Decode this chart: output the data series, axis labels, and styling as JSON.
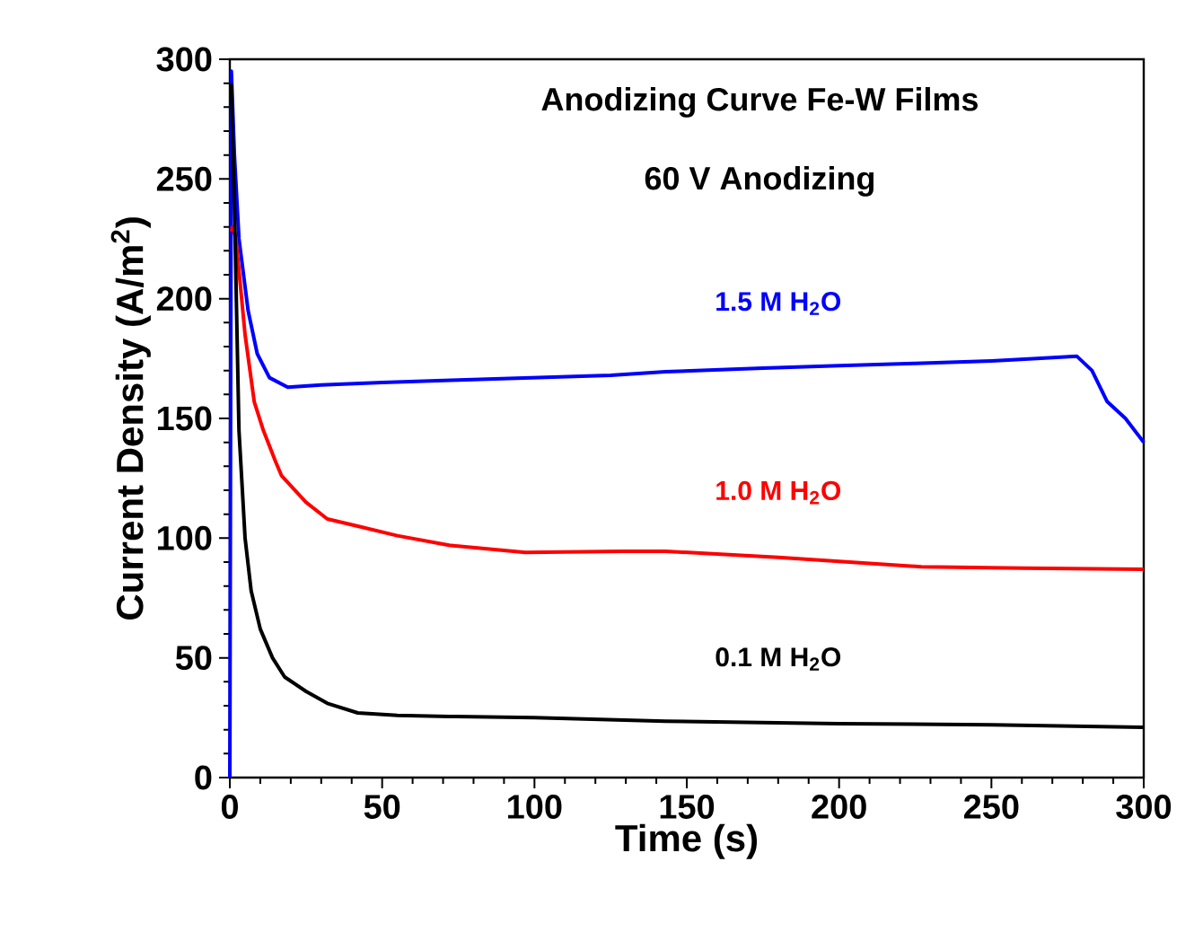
{
  "chart_data": {
    "type": "line",
    "title": "Anodizing Curve Fe-W Films",
    "subtitle": "60 V Anodizing",
    "xlabel": "Time (s)",
    "ylabel": "Current Density (A/m$^{2}$)",
    "xlim": [
      0,
      300
    ],
    "ylim": [
      0,
      300
    ],
    "xticks": [
      0,
      50,
      100,
      150,
      200,
      250,
      300
    ],
    "yticks": [
      0,
      50,
      100,
      150,
      200,
      250,
      300
    ],
    "grid": false,
    "legend": false,
    "marker": "none",
    "line_style": "solid",
    "series": [
      {
        "name": "1.5 M H$_{2}$O",
        "color": "#0000ff",
        "x": [
          0,
          0.5,
          1.5,
          3,
          6,
          9,
          13,
          19,
          30,
          50,
          75,
          100,
          125,
          143,
          175,
          200,
          225,
          250,
          265,
          278,
          283,
          288,
          294,
          300
        ],
        "values": [
          0,
          295,
          260,
          225,
          195,
          177,
          167,
          163,
          164,
          165,
          166,
          167,
          168,
          169.5,
          171,
          172,
          173,
          174,
          175,
          176,
          170,
          157,
          150,
          140
        ]
      },
      {
        "name": "1.0 M H$_{2}$O",
        "color": "#ff0000",
        "x": [
          0.5,
          1,
          2,
          5,
          8,
          11,
          15,
          17,
          25,
          32,
          42,
          55,
          72,
          97,
          129,
          143,
          180,
          227,
          260,
          300
        ],
        "values": [
          228,
          230,
          225,
          185,
          157,
          145,
          132,
          126,
          115,
          108,
          105,
          101,
          97,
          94,
          94.5,
          94.5,
          92,
          88,
          87.5,
          87
        ]
      },
      {
        "name": "0.1 M H$_{2}$O",
        "color": "#000000",
        "x": [
          0.5,
          1.5,
          3,
          5,
          7,
          10,
          14,
          18,
          25,
          32,
          42,
          55,
          72,
          100,
          143,
          200,
          250,
          300
        ],
        "values": [
          290,
          240,
          145,
          100,
          78,
          62,
          50,
          42,
          36,
          31,
          27,
          26,
          25.5,
          25,
          23.5,
          22.5,
          22,
          21
        ]
      }
    ]
  }
}
